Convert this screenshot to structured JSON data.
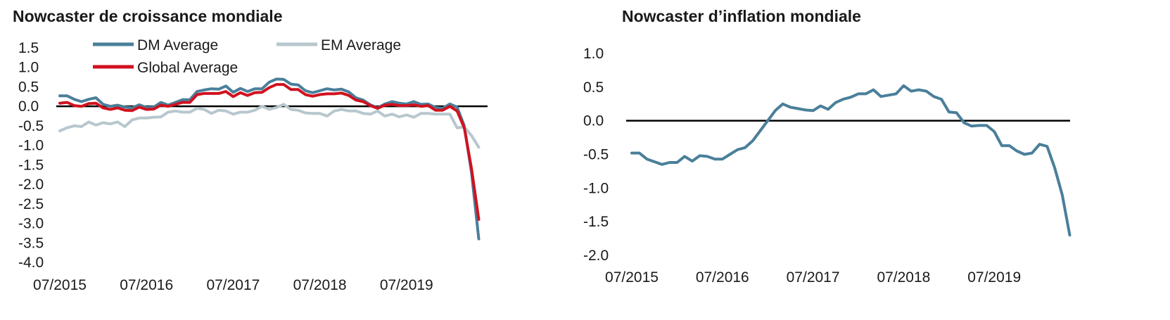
{
  "chart_data": [
    {
      "type": "line",
      "title": "Nowcaster de croissance mondiale",
      "xlabel": "",
      "ylabel": "",
      "x_tick_labels": [
        "07/2015",
        "07/2016",
        "07/2017",
        "07/2018",
        "07/2019"
      ],
      "x_tick_index": [
        0,
        12,
        24,
        36,
        48
      ],
      "y_ticks": [
        1.5,
        1.0,
        0.5,
        0.0,
        -0.5,
        -1.0,
        -1.5,
        -2.0,
        -2.5,
        -3.0,
        -3.5,
        -4.0
      ],
      "y_tick_labels": [
        "1.5",
        "1.0",
        "0.5",
        "0.0",
        "-0.5",
        "-1.0",
        "-1.5",
        "-2.0",
        "-2.5",
        "-3.0",
        "-3.5",
        "-4.0"
      ],
      "ylim": [
        -4.0,
        1.5
      ],
      "xlim": [
        0,
        60
      ],
      "zero_line": true,
      "legend": "top",
      "series": [
        {
          "name": "DM Average",
          "color": "#4a7f9a",
          "values": [
            0.27,
            0.27,
            0.18,
            0.12,
            0.18,
            0.22,
            0.05,
            0.0,
            0.03,
            -0.02,
            -0.04,
            0.04,
            -0.03,
            -0.02,
            0.1,
            0.03,
            0.1,
            0.17,
            0.17,
            0.38,
            0.42,
            0.45,
            0.44,
            0.52,
            0.36,
            0.46,
            0.38,
            0.45,
            0.45,
            0.62,
            0.7,
            0.69,
            0.57,
            0.55,
            0.4,
            0.35,
            0.4,
            0.45,
            0.42,
            0.44,
            0.37,
            0.22,
            0.16,
            0.04,
            -0.04,
            0.06,
            0.12,
            0.08,
            0.06,
            0.12,
            0.05,
            0.06,
            -0.03,
            -0.05,
            0.06,
            -0.02,
            -0.5,
            -1.7,
            -3.4
          ]
        },
        {
          "name": "EM Average",
          "color": "#b7c7ce",
          "values": [
            -0.63,
            -0.55,
            -0.5,
            -0.52,
            -0.4,
            -0.48,
            -0.42,
            -0.45,
            -0.4,
            -0.52,
            -0.35,
            -0.3,
            -0.3,
            -0.28,
            -0.27,
            -0.15,
            -0.12,
            -0.15,
            -0.15,
            -0.05,
            -0.08,
            -0.18,
            -0.1,
            -0.12,
            -0.2,
            -0.15,
            -0.15,
            -0.1,
            0.0,
            -0.08,
            -0.03,
            0.05,
            -0.08,
            -0.1,
            -0.17,
            -0.18,
            -0.18,
            -0.25,
            -0.12,
            -0.08,
            -0.12,
            -0.12,
            -0.18,
            -0.2,
            -0.12,
            -0.25,
            -0.2,
            -0.27,
            -0.22,
            -0.28,
            -0.18,
            -0.18,
            -0.2,
            -0.2,
            -0.2,
            -0.55,
            -0.53,
            -0.75,
            -1.05
          ]
        },
        {
          "name": "Global Average",
          "color": "#d0121f",
          "values": [
            0.08,
            0.1,
            0.02,
            0.0,
            0.07,
            0.08,
            -0.04,
            -0.08,
            -0.04,
            -0.1,
            -0.11,
            -0.02,
            -0.08,
            -0.07,
            0.03,
            0.0,
            0.05,
            0.1,
            0.1,
            0.3,
            0.33,
            0.33,
            0.33,
            0.38,
            0.25,
            0.35,
            0.28,
            0.35,
            0.36,
            0.48,
            0.56,
            0.56,
            0.43,
            0.43,
            0.3,
            0.26,
            0.3,
            0.32,
            0.32,
            0.34,
            0.28,
            0.16,
            0.12,
            0.02,
            -0.05,
            0.03,
            0.05,
            0.02,
            0.02,
            0.04,
            0.0,
            0.02,
            -0.1,
            -0.1,
            0.0,
            -0.12,
            -0.55,
            -1.6,
            -2.9
          ]
        }
      ]
    },
    {
      "type": "line",
      "title": "Nowcaster d’inflation mondiale",
      "xlabel": "",
      "ylabel": "",
      "x_tick_labels": [
        "07/2015",
        "07/2016",
        "07/2017",
        "07/2018",
        "07/2019"
      ],
      "x_tick_index": [
        0,
        12,
        24,
        36,
        48
      ],
      "y_ticks": [
        1.0,
        0.5,
        0.0,
        -0.5,
        -1.0,
        -1.5,
        -2.0
      ],
      "y_tick_labels": [
        "1.0",
        "0.5",
        "0.0",
        "-0.5",
        "-1.0",
        "-1.5",
        "-2.0"
      ],
      "ylim": [
        -2.0,
        1.0
      ],
      "xlim": [
        0,
        60
      ],
      "zero_line": true,
      "series": [
        {
          "name": "",
          "color": "#4a7f9a",
          "values": [
            -0.48,
            -0.48,
            -0.57,
            -0.61,
            -0.65,
            -0.62,
            -0.62,
            -0.53,
            -0.6,
            -0.52,
            -0.53,
            -0.57,
            -0.57,
            -0.5,
            -0.43,
            -0.4,
            -0.3,
            -0.15,
            0.0,
            0.15,
            0.25,
            0.2,
            0.18,
            0.16,
            0.15,
            0.22,
            0.17,
            0.27,
            0.32,
            0.35,
            0.4,
            0.4,
            0.46,
            0.36,
            0.38,
            0.4,
            0.52,
            0.44,
            0.46,
            0.44,
            0.36,
            0.32,
            0.13,
            0.12,
            -0.03,
            -0.08,
            -0.07,
            -0.07,
            -0.16,
            -0.37,
            -0.37,
            -0.45,
            -0.5,
            -0.48,
            -0.35,
            -0.38,
            -0.7,
            -1.1,
            -1.7
          ]
        }
      ]
    }
  ]
}
